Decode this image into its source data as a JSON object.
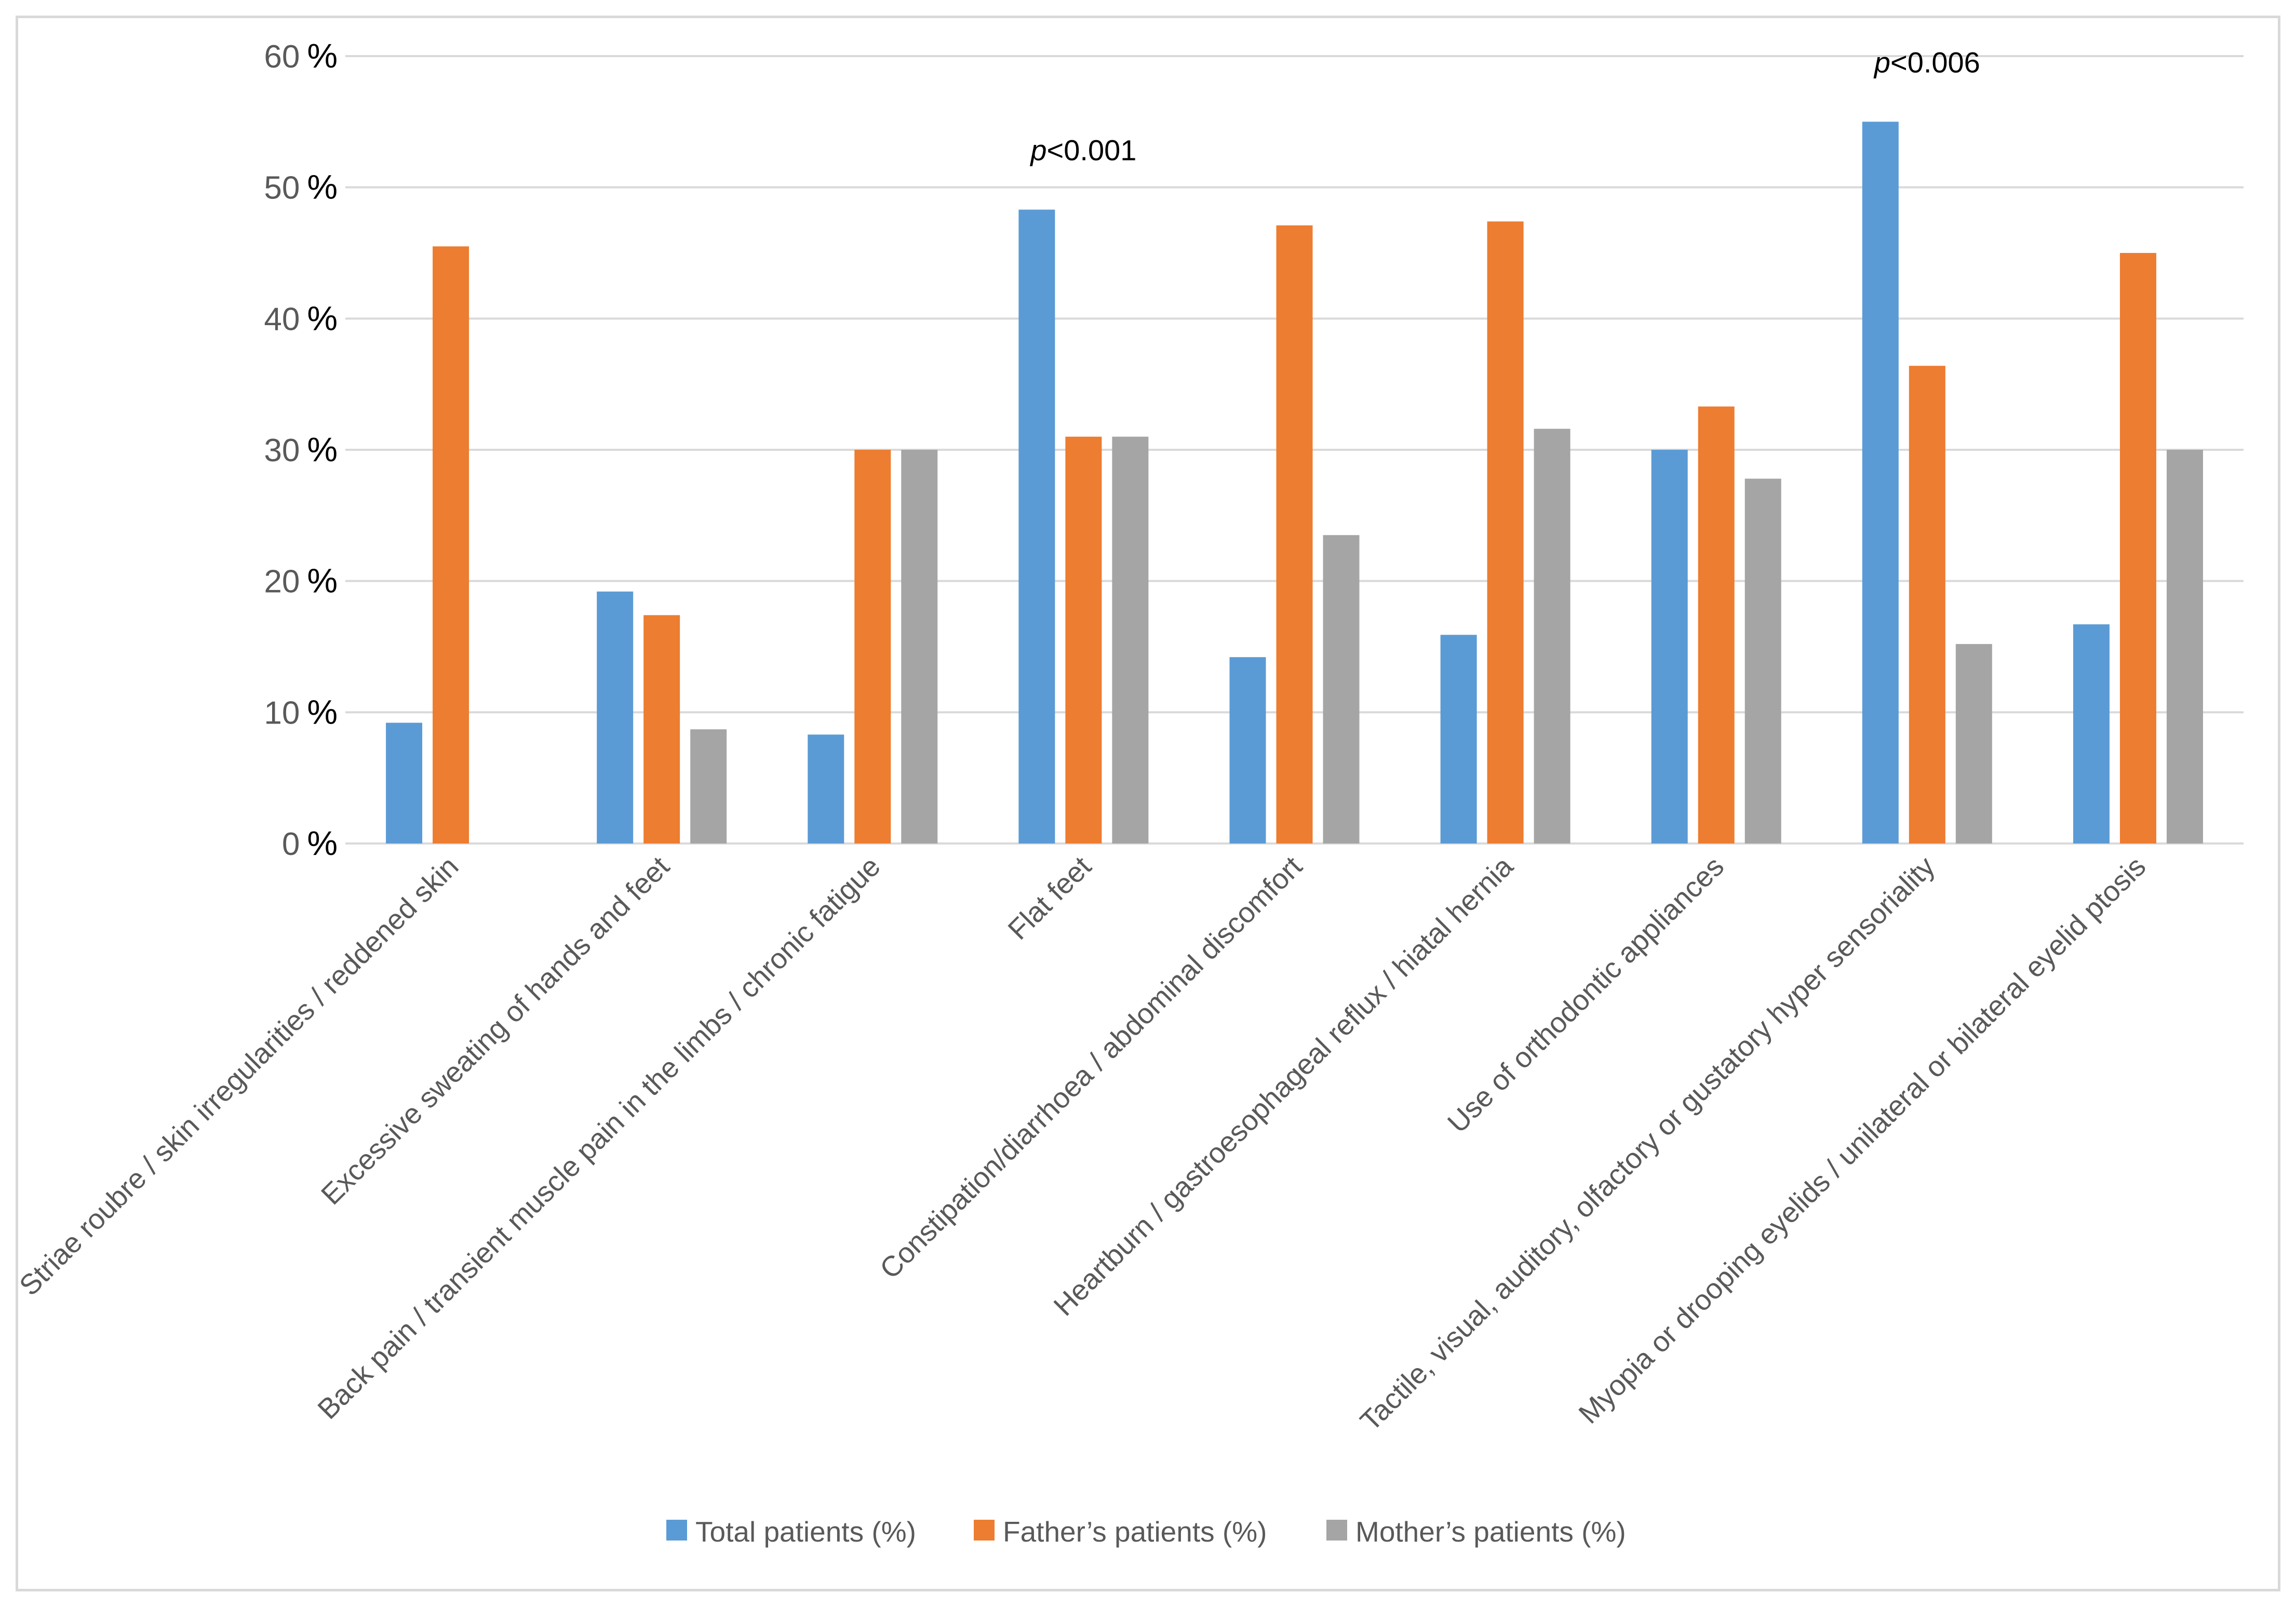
{
  "chart_data": {
    "type": "bar",
    "title": "",
    "xlabel": "",
    "ylabel": "",
    "ylim": [
      0,
      60
    ],
    "yticks": [
      0,
      10,
      20,
      30,
      40,
      50,
      60
    ],
    "ytick_suffix": "%",
    "grid": true,
    "legend_position": "bottom",
    "categories": [
      "Striae roubre / skin irregularities / reddened skin",
      "Excessive sweating of hands and feet",
      "Back pain / transient muscle pain in the limbs / chronic fatigue",
      "Flat feet",
      "Constipation/diarrhoea / abdominal discomfort",
      "Heartburn / gastroesophageal reflux / hiatal hernia",
      "Use of orthodontic appliances",
      "Tactile, visual, auditory, olfactory or gustatory hyper sensoriality",
      "Myopia or drooping eyelids / unilateral or bilateral eyelid ptosis"
    ],
    "series": [
      {
        "name": "Total patients (%)",
        "color": "#5b9bd5",
        "values": [
          9.2,
          19.2,
          8.3,
          48.3,
          14.2,
          15.9,
          30.0,
          55.0,
          16.7
        ]
      },
      {
        "name": "Father’s patients (%)",
        "color": "#ed7d31",
        "values": [
          45.5,
          17.4,
          30.0,
          31.0,
          47.1,
          47.4,
          33.3,
          36.4,
          45.0
        ]
      },
      {
        "name": "Mother’s patients (%)",
        "color": "#a5a5a5",
        "values": [
          0,
          8.7,
          30.0,
          31.0,
          23.5,
          31.6,
          27.8,
          15.2,
          30.0
        ]
      }
    ],
    "annotations": [
      {
        "prefix": "p",
        "text": "<0.001",
        "category_index": 3,
        "anchor_value": 48.3
      },
      {
        "prefix": "p",
        "text": "<0.006",
        "category_index": 7,
        "anchor_value": 55.0
      }
    ]
  }
}
